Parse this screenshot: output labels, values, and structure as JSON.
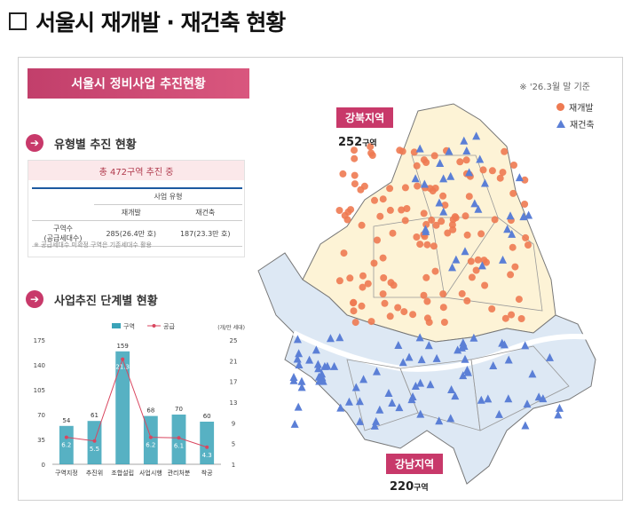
{
  "heading": "서울시 재개발 · 재건축 현황",
  "banner": "서울시 정비사업 추진현황",
  "basis_note": "※ '26.3월 말 기준",
  "type_section": {
    "title": "유형별 추진 현황",
    "summary": "총 472구역 추진 중",
    "group_header": "사업 유형",
    "col_redev": "재개발",
    "col_recon": "재건축",
    "row_label_1": "구역수",
    "row_label_2": "(공급세대수)",
    "redev_value": "285(26.4만 호)",
    "recon_value": "187(23.3만 호)",
    "note": "※ 공급세대수 미확정 구역은 기존세대수 활용"
  },
  "stage_section": {
    "title": "사업추진 단계별 현황"
  },
  "legend": {
    "redev": "재개발",
    "recon": "재건축"
  },
  "regions": {
    "north": {
      "label": "강북지역",
      "count": "252",
      "unit": "구역"
    },
    "south": {
      "label": "강남지역",
      "count": "220",
      "unit": "구역"
    }
  },
  "chart_data": {
    "type": "bar",
    "categories": [
      "구역지정",
      "추진위",
      "조합설립",
      "사업시행",
      "관리처분",
      "착공"
    ],
    "series": [
      {
        "name": "구역",
        "type": "bar",
        "values": [
          54,
          61,
          159,
          68,
          70,
          60
        ],
        "color": "#3aa3b8"
      },
      {
        "name": "공급",
        "type": "line",
        "values": [
          6.2,
          5.5,
          21.3,
          6.2,
          6.1,
          4.3
        ],
        "color": "#d9465f"
      }
    ],
    "left_axis": {
      "ylim": [
        0,
        175
      ],
      "ticks": [
        "0",
        "35",
        "70",
        "105",
        "140",
        "175"
      ]
    },
    "right_axis": {
      "label": "(개/만 세대)",
      "ylim": [
        1,
        25
      ],
      "ticks": [
        "1",
        "5",
        "9",
        "13",
        "17",
        "21",
        "25"
      ]
    }
  }
}
